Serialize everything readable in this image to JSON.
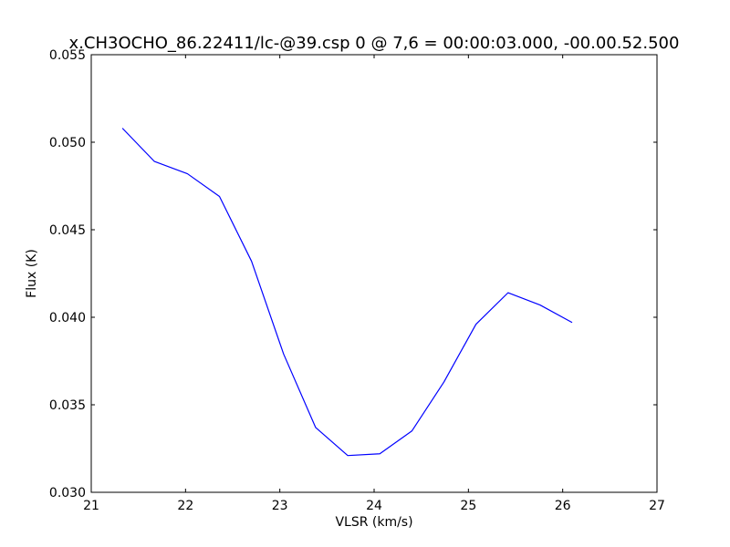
{
  "chart_data": {
    "type": "line",
    "title": "x.CH3OCHO_86.22411/lc-@39.csp 0 @ 7,6 = 00:00:03.000, -00.00.52.500",
    "xlabel": "VLSR (km/s)",
    "ylabel": "Flux (K)",
    "xlim": [
      21,
      27
    ],
    "ylim": [
      0.03,
      0.055
    ],
    "xticks": [
      "21",
      "22",
      "23",
      "24",
      "25",
      "26",
      "27"
    ],
    "yticks": [
      "0.030",
      "0.035",
      "0.040",
      "0.045",
      "0.050",
      "0.055"
    ],
    "grid": false,
    "series": [
      {
        "color": "#0000ff",
        "x": [
          21.33,
          21.67,
          22.02,
          22.36,
          22.7,
          23.04,
          23.38,
          23.72,
          24.06,
          24.4,
          24.74,
          25.08,
          25.42,
          25.76,
          26.1
        ],
        "y": [
          0.0508,
          0.0489,
          0.0482,
          0.0469,
          0.0432,
          0.0379,
          0.0337,
          0.0321,
          0.0322,
          0.0335,
          0.0363,
          0.0396,
          0.0414,
          0.0407,
          0.0397
        ]
      }
    ]
  }
}
